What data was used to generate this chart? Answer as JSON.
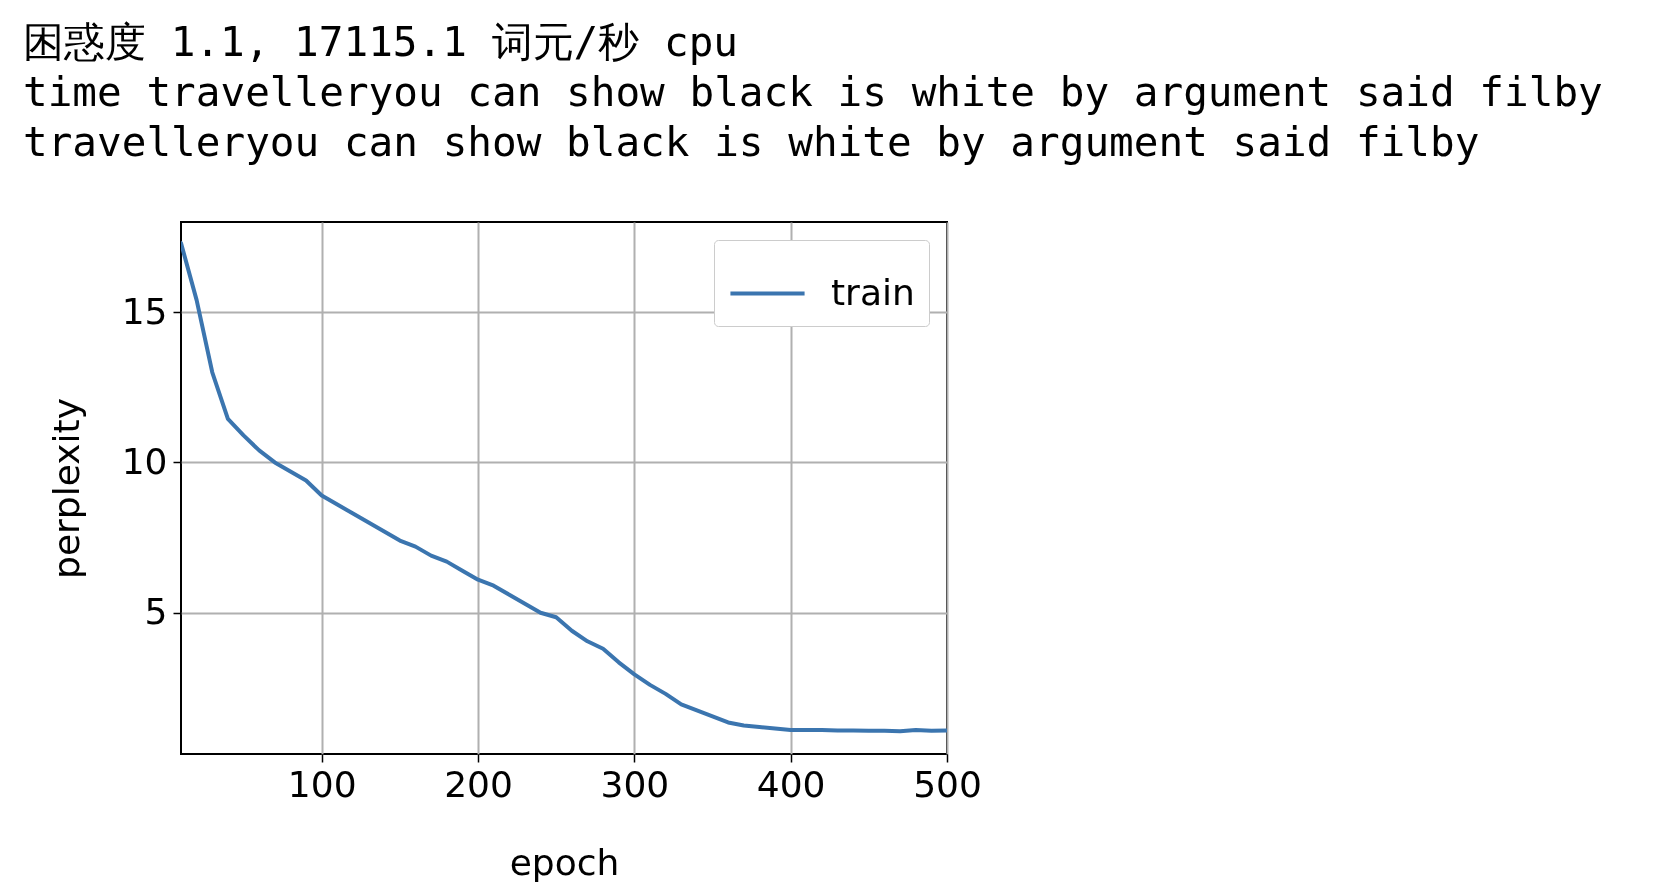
{
  "chart_data": {
    "type": "line",
    "title": "困惑度 1.1, 17115.1 词元/秒 cpu",
    "annotations": [
      "time travelleryou can show black is white by argument said filby",
      "travelleryou can show black is white by argument said filby"
    ],
    "xlabel": "epoch",
    "ylabel": "perplexity",
    "x": [
      10,
      20,
      30,
      40,
      50,
      60,
      70,
      80,
      90,
      100,
      110,
      120,
      130,
      140,
      150,
      160,
      170,
      180,
      190,
      200,
      210,
      220,
      230,
      240,
      250,
      260,
      270,
      280,
      290,
      300,
      310,
      320,
      330,
      340,
      350,
      360,
      370,
      380,
      390,
      400,
      410,
      420,
      430,
      440,
      450,
      460,
      470,
      480,
      490,
      500
    ],
    "series": [
      {
        "name": "train",
        "color": "#3b75af",
        "values": [
          17.3,
          15.4,
          13.0,
          11.45,
          10.9,
          10.4,
          10.0,
          9.7,
          9.4,
          8.9,
          8.6,
          8.3,
          8.0,
          7.7,
          7.4,
          7.2,
          6.9,
          6.7,
          6.4,
          6.1,
          5.9,
          5.6,
          5.3,
          5.0,
          4.85,
          4.4,
          4.05,
          3.8,
          3.35,
          2.95,
          2.6,
          2.3,
          1.95,
          1.75,
          1.55,
          1.35,
          1.25,
          1.2,
          1.15,
          1.1,
          1.1,
          1.1,
          1.08,
          1.08,
          1.07,
          1.07,
          1.06,
          1.1,
          1.07,
          1.08
        ]
      }
    ],
    "xlim": [
      10,
      500
    ],
    "xticks": [
      100,
      200,
      300,
      400,
      500
    ],
    "ylim": [
      0.3,
      18
    ],
    "yticks": [
      5,
      10,
      15
    ],
    "grid": true,
    "legend": "top right",
    "line_style": "solid"
  }
}
